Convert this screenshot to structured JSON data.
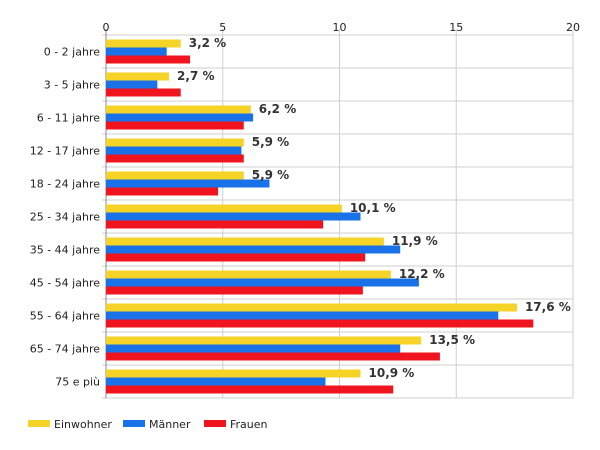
{
  "chart_data": {
    "type": "bar",
    "orientation": "horizontal",
    "categories": [
      "0 - 2 jahre",
      "3 - 5 jahre",
      "6 - 11 jahre",
      "12 - 17 jahre",
      "18 - 24 jahre",
      "25 - 34 jahre",
      "35 - 44 jahre",
      "45 - 54 jahre",
      "55 - 64 jahre",
      "65 - 74 jahre",
      "75 e più"
    ],
    "series": [
      {
        "name": "Einwohner",
        "color": "#f5d327",
        "values": [
          3.2,
          2.7,
          6.2,
          5.9,
          5.9,
          10.1,
          11.9,
          12.2,
          17.6,
          13.5,
          10.9
        ],
        "labels": [
          "3,2 %",
          "2,7 %",
          "6,2 %",
          "5,9 %",
          "5,9 %",
          "10,1 %",
          "11,9 %",
          "12,2 %",
          "17,6 %",
          "13,5 %",
          "10,9 %"
        ]
      },
      {
        "name": "Männer",
        "color": "#1a72e8",
        "values": [
          2.6,
          2.2,
          6.3,
          5.8,
          7.0,
          10.9,
          12.6,
          13.4,
          16.8,
          12.6,
          9.4
        ]
      },
      {
        "name": "Frauen",
        "color": "#f0141e",
        "values": [
          3.6,
          3.2,
          5.9,
          5.9,
          4.8,
          9.3,
          11.1,
          11.0,
          18.3,
          14.3,
          12.3
        ]
      }
    ],
    "xlim": [
      0,
      20
    ],
    "xticks": [
      "0",
      "5",
      "10",
      "15",
      "20"
    ],
    "grid": true,
    "legend_position": "bottom-left"
  }
}
